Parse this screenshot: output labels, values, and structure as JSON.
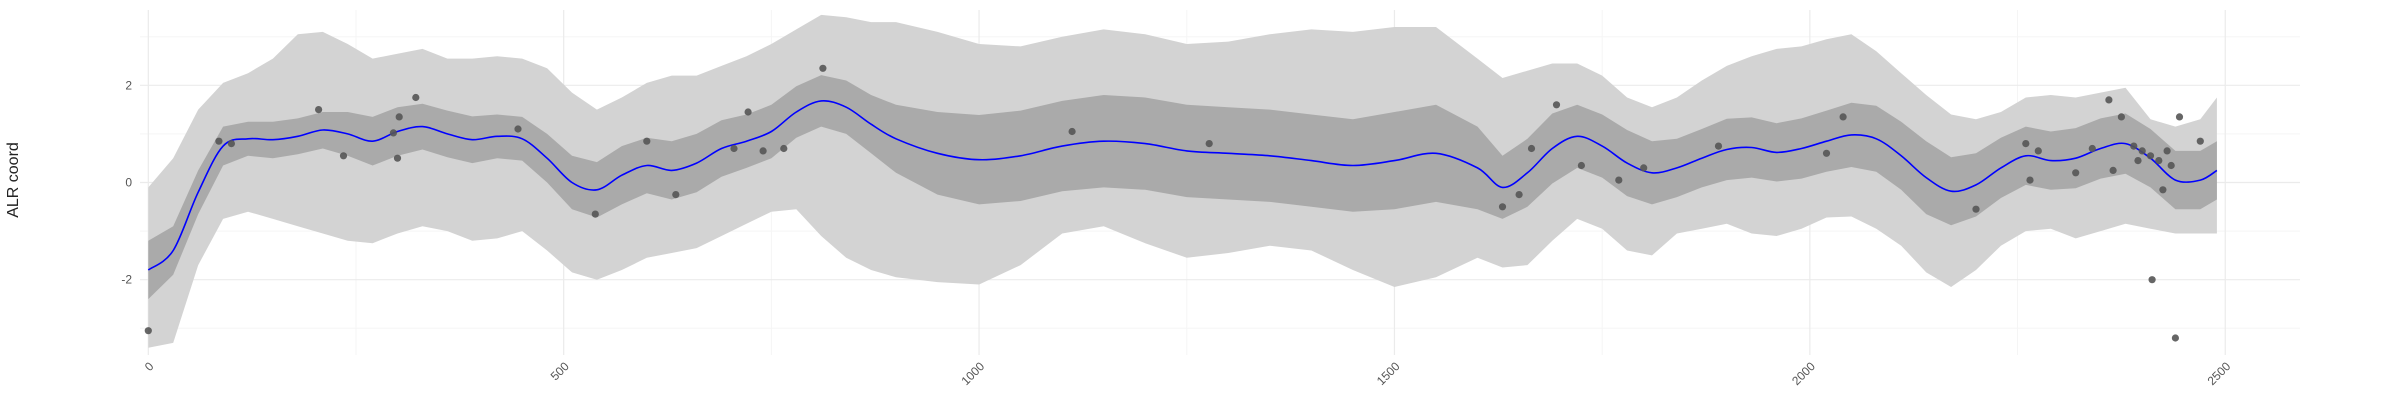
{
  "chart_data": {
    "type": "line",
    "title": "",
    "xlabel": "",
    "ylabel": "ALR coord",
    "xlim": [
      -10,
      2590
    ],
    "ylim": [
      -3.55,
      3.55
    ],
    "x_ticks": [
      0,
      500,
      1000,
      1500,
      2000,
      2500
    ],
    "x_tick_labels": [
      "0",
      "500",
      "1000",
      "1500",
      "2000",
      "2500"
    ],
    "y_ticks": [
      -2,
      0,
      2
    ],
    "y_tick_labels": [
      "-2",
      "0",
      "2"
    ],
    "grid": true,
    "legend": "none",
    "colors": {
      "mean_line": "#0000ff",
      "outer_band": "#d3d3d3",
      "inner_band": "#aaaaaa",
      "points": "#555555",
      "grid_major": "#ebebeb",
      "grid_minor": "#f5f5f5"
    },
    "mean": {
      "x": [
        0,
        30,
        60,
        90,
        120,
        150,
        180,
        210,
        240,
        270,
        300,
        330,
        360,
        390,
        420,
        450,
        480,
        510,
        540,
        570,
        600,
        630,
        660,
        690,
        720,
        750,
        780,
        810,
        840,
        870,
        900,
        950,
        1000,
        1050,
        1100,
        1150,
        1200,
        1250,
        1300,
        1350,
        1400,
        1450,
        1500,
        1550,
        1600,
        1630,
        1660,
        1690,
        1720,
        1750,
        1780,
        1810,
        1840,
        1870,
        1900,
        1930,
        1960,
        1990,
        2020,
        2050,
        2080,
        2110,
        2140,
        2170,
        2200,
        2230,
        2260,
        2290,
        2320,
        2350,
        2380,
        2410,
        2440,
        2470,
        2490
      ],
      "y": [
        -1.8,
        -1.4,
        -0.2,
        0.75,
        0.9,
        0.88,
        0.95,
        1.08,
        1.0,
        0.85,
        1.05,
        1.15,
        1.0,
        0.88,
        0.95,
        0.9,
        0.5,
        0.0,
        -0.15,
        0.15,
        0.35,
        0.25,
        0.4,
        0.7,
        0.85,
        1.05,
        1.45,
        1.68,
        1.55,
        1.2,
        0.9,
        0.6,
        0.47,
        0.55,
        0.75,
        0.85,
        0.8,
        0.65,
        0.6,
        0.55,
        0.45,
        0.35,
        0.45,
        0.6,
        0.3,
        -0.1,
        0.2,
        0.7,
        0.95,
        0.75,
        0.4,
        0.2,
        0.3,
        0.5,
        0.68,
        0.72,
        0.62,
        0.7,
        0.85,
        0.98,
        0.9,
        0.55,
        0.1,
        -0.18,
        -0.05,
        0.3,
        0.55,
        0.45,
        0.5,
        0.7,
        0.8,
        0.5,
        0.05,
        0.05,
        0.25
      ]
    },
    "inner_band": {
      "x": [
        0,
        30,
        60,
        90,
        120,
        150,
        180,
        210,
        240,
        270,
        300,
        330,
        360,
        390,
        420,
        450,
        480,
        510,
        540,
        570,
        600,
        630,
        660,
        690,
        720,
        750,
        780,
        810,
        840,
        870,
        900,
        950,
        1000,
        1050,
        1100,
        1150,
        1200,
        1250,
        1300,
        1350,
        1400,
        1450,
        1500,
        1550,
        1600,
        1630,
        1660,
        1690,
        1720,
        1750,
        1780,
        1810,
        1840,
        1870,
        1900,
        1930,
        1960,
        1990,
        2020,
        2050,
        2080,
        2110,
        2140,
        2170,
        2200,
        2230,
        2260,
        2290,
        2320,
        2350,
        2380,
        2410,
        2440,
        2470,
        2490
      ],
      "lower": [
        -2.4,
        -1.9,
        -0.65,
        0.35,
        0.55,
        0.5,
        0.58,
        0.7,
        0.55,
        0.35,
        0.55,
        0.68,
        0.52,
        0.4,
        0.5,
        0.45,
        0.0,
        -0.55,
        -0.72,
        -0.45,
        -0.22,
        -0.35,
        -0.2,
        0.12,
        0.3,
        0.5,
        0.92,
        1.15,
        1.0,
        0.6,
        0.2,
        -0.25,
        -0.45,
        -0.38,
        -0.18,
        -0.1,
        -0.15,
        -0.3,
        -0.35,
        -0.4,
        -0.5,
        -0.6,
        -0.55,
        -0.4,
        -0.55,
        -0.75,
        -0.5,
        -0.02,
        0.3,
        0.1,
        -0.28,
        -0.45,
        -0.3,
        -0.1,
        0.05,
        0.1,
        0.02,
        0.08,
        0.22,
        0.32,
        0.22,
        -0.15,
        -0.65,
        -0.88,
        -0.7,
        -0.32,
        -0.05,
        -0.15,
        -0.12,
        0.08,
        0.18,
        -0.1,
        -0.55,
        -0.55,
        -0.35
      ],
      "upper": [
        -1.2,
        -0.9,
        0.25,
        1.15,
        1.25,
        1.25,
        1.32,
        1.45,
        1.45,
        1.35,
        1.55,
        1.62,
        1.48,
        1.36,
        1.4,
        1.35,
        1.0,
        0.55,
        0.42,
        0.75,
        0.92,
        0.85,
        1.0,
        1.28,
        1.4,
        1.6,
        1.98,
        2.21,
        2.1,
        1.8,
        1.6,
        1.45,
        1.39,
        1.48,
        1.68,
        1.8,
        1.75,
        1.6,
        1.55,
        1.5,
        1.4,
        1.3,
        1.45,
        1.6,
        1.15,
        0.55,
        0.9,
        1.42,
        1.6,
        1.4,
        1.08,
        0.85,
        0.9,
        1.1,
        1.31,
        1.34,
        1.22,
        1.32,
        1.48,
        1.64,
        1.58,
        1.25,
        0.85,
        0.52,
        0.6,
        0.92,
        1.15,
        1.05,
        1.12,
        1.32,
        1.42,
        1.1,
        0.65,
        0.65,
        0.85
      ]
    },
    "outer_band": {
      "x": [
        0,
        30,
        60,
        90,
        120,
        150,
        180,
        210,
        240,
        270,
        300,
        330,
        360,
        390,
        420,
        450,
        480,
        510,
        540,
        570,
        600,
        630,
        660,
        690,
        720,
        750,
        780,
        810,
        840,
        870,
        900,
        950,
        1000,
        1050,
        1100,
        1150,
        1200,
        1250,
        1300,
        1350,
        1400,
        1450,
        1500,
        1550,
        1600,
        1630,
        1660,
        1690,
        1720,
        1750,
        1780,
        1810,
        1840,
        1870,
        1900,
        1930,
        1960,
        1990,
        2020,
        2050,
        2080,
        2110,
        2140,
        2170,
        2200,
        2230,
        2260,
        2290,
        2320,
        2350,
        2380,
        2410,
        2440,
        2470,
        2490
      ],
      "lower": [
        -3.4,
        -3.3,
        -1.7,
        -0.75,
        -0.6,
        -0.75,
        -0.9,
        -1.05,
        -1.2,
        -1.25,
        -1.05,
        -0.9,
        -1.0,
        -1.2,
        -1.15,
        -1.0,
        -1.4,
        -1.85,
        -2.0,
        -1.8,
        -1.55,
        -1.45,
        -1.35,
        -1.1,
        -0.85,
        -0.6,
        -0.55,
        -1.1,
        -1.55,
        -1.8,
        -1.95,
        -2.05,
        -2.1,
        -1.7,
        -1.05,
        -0.9,
        -1.25,
        -1.55,
        -1.45,
        -1.3,
        -1.4,
        -1.8,
        -2.15,
        -1.95,
        -1.55,
        -1.75,
        -1.7,
        -1.2,
        -0.75,
        -0.95,
        -1.4,
        -1.5,
        -1.05,
        -0.95,
        -0.85,
        -1.05,
        -1.1,
        -0.95,
        -0.72,
        -0.7,
        -0.95,
        -1.3,
        -1.85,
        -2.15,
        -1.8,
        -1.3,
        -1.0,
        -0.95,
        -1.15,
        -1.0,
        -0.85,
        -0.95,
        -1.05,
        -1.05,
        -1.05
      ],
      "upper": [
        -0.1,
        0.5,
        1.5,
        2.05,
        2.25,
        2.55,
        3.05,
        3.1,
        2.85,
        2.55,
        2.65,
        2.75,
        2.55,
        2.55,
        2.6,
        2.55,
        2.35,
        1.85,
        1.5,
        1.75,
        2.05,
        2.2,
        2.2,
        2.4,
        2.6,
        2.85,
        3.15,
        3.45,
        3.4,
        3.3,
        3.3,
        3.1,
        2.85,
        2.8,
        3.0,
        3.15,
        3.05,
        2.85,
        2.9,
        3.05,
        3.15,
        3.1,
        3.2,
        3.2,
        2.55,
        2.15,
        2.3,
        2.45,
        2.45,
        2.2,
        1.75,
        1.55,
        1.75,
        2.1,
        2.4,
        2.6,
        2.75,
        2.8,
        2.95,
        3.05,
        2.7,
        2.25,
        1.8,
        1.4,
        1.3,
        1.45,
        1.75,
        1.8,
        1.75,
        1.85,
        1.95,
        1.3,
        1.15,
        1.3,
        1.75
      ]
    },
    "points": {
      "x": [
        0,
        85,
        100,
        205,
        235,
        295,
        300,
        302,
        322,
        445,
        538,
        600,
        635,
        705,
        722,
        740,
        765,
        812,
        1112,
        1277,
        1630,
        1650,
        1665,
        1695,
        1725,
        1770,
        1800,
        1890,
        2020,
        2040,
        2200,
        2260,
        2265,
        2275,
        2320,
        2340,
        2360,
        2365,
        2375,
        2390,
        2395,
        2400,
        2410,
        2412,
        2420,
        2425,
        2430,
        2435,
        2440,
        2445,
        2470
      ],
      "y": [
        -3.05,
        0.85,
        0.8,
        1.5,
        0.55,
        1.02,
        0.5,
        1.35,
        1.75,
        1.1,
        -0.65,
        0.85,
        -0.25,
        0.7,
        1.45,
        0.65,
        0.7,
        2.35,
        1.05,
        0.8,
        -0.5,
        -0.25,
        0.7,
        1.6,
        0.35,
        0.05,
        0.3,
        0.75,
        0.6,
        1.35,
        -0.55,
        0.8,
        0.05,
        0.65,
        0.2,
        0.7,
        1.7,
        0.25,
        1.35,
        0.75,
        0.45,
        0.65,
        0.55,
        -2.0,
        0.45,
        -0.15,
        0.65,
        0.35,
        -3.2,
        1.35,
        0.85
      ]
    }
  }
}
